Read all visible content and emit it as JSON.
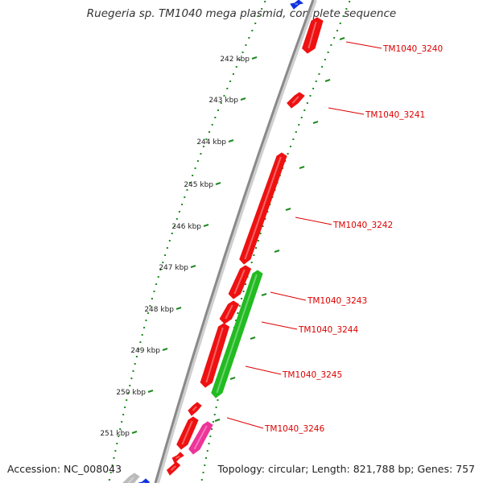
{
  "title": "Ruegeria sp. TM1040 mega plasmid, complete sequence",
  "accession_text": "Accession: NC_008043",
  "topology_text": "Topology: circular; Length: 821,788 bp; Genes: 757",
  "scale_ticks": [
    "242 kbp",
    "243 kbp",
    "244 kbp",
    "245 kbp",
    "246 kbp",
    "247 kbp",
    "248 kbp",
    "249 kbp",
    "250 kbp",
    "251 kbp"
  ],
  "gene_labels": [
    "TM1040_3240",
    "TM1040_3241",
    "TM1040_3242",
    "TM1040_3243",
    "TM1040_3244",
    "TM1040_3245",
    "TM1040_3246"
  ],
  "colors": {
    "backbone": "#8a8a8a",
    "tick_dots": "#1f8a1f",
    "gene_red": "#ee1111",
    "gene_green": "#22bb22",
    "gene_pink": "#ee3399",
    "gene_blue": "#1133dd",
    "gene_grey": "#bbbbbb",
    "label_red": "#dd0000"
  }
}
